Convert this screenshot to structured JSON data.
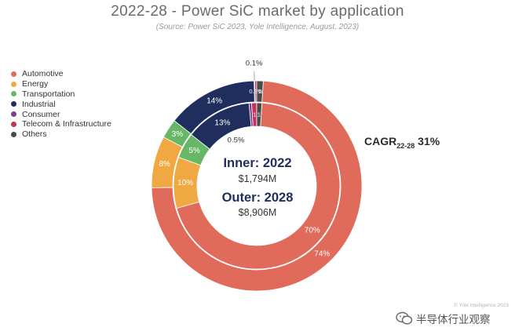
{
  "chart_data": {
    "type": "pie",
    "title": "2022-28 - Power SiC market by application",
    "subtitle": "(Source: Power SiC 2023, Yole Intelligence, August, 2023)",
    "categories": [
      "Automotive",
      "Energy",
      "Transportation",
      "Industrial",
      "Consumer",
      "Telecom & Infrastructure",
      "Others"
    ],
    "colors": [
      "#e06b5b",
      "#f0a843",
      "#67b767",
      "#1f2e5c",
      "#7b3f8e",
      "#c8325a",
      "#4a4a4a"
    ],
    "series": [
      {
        "name": "Inner: 2022",
        "total_label": "$1,794M",
        "values": [
          70,
          10,
          5,
          13,
          0.5,
          1,
          1
        ],
        "labels": [
          "70%",
          "10%",
          "5%",
          "13%",
          "0.5%",
          "1",
          "1"
        ]
      },
      {
        "name": "Outer: 2028",
        "total_label": "$8,906M",
        "values": [
          74,
          8,
          3,
          14,
          0.1,
          0.3,
          1
        ],
        "labels": [
          "74%",
          "8%",
          "3%",
          "14%",
          "0.1%",
          "0.3%",
          "1"
        ]
      }
    ],
    "cagr": {
      "text": "CAGR",
      "sub": "22-28",
      "value": " 31%"
    },
    "legend_position": "left"
  },
  "watermark": "© Yole Intelligence 2023",
  "wechat_label": "半导体行业观察",
  "wechat_icon": "wechat-icon"
}
